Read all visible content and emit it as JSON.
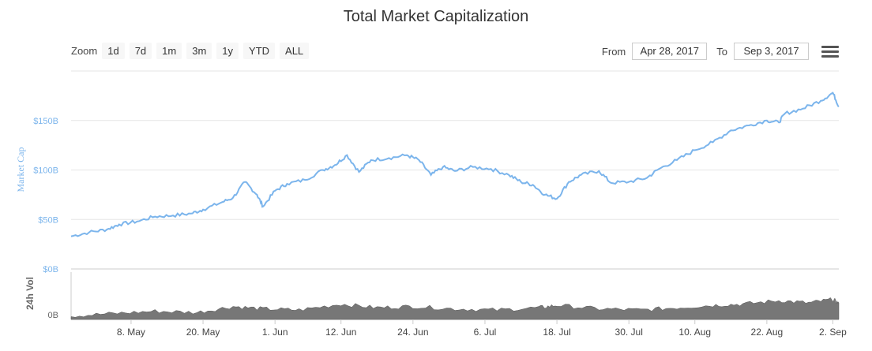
{
  "header": {
    "title": "Total Market Capitalization"
  },
  "zoom": {
    "label": "Zoom",
    "buttons": [
      "1d",
      "7d",
      "1m",
      "3m",
      "1y",
      "YTD",
      "ALL"
    ]
  },
  "range": {
    "from_label": "From",
    "from_value": "Apr 28, 2017",
    "to_label": "To",
    "to_value": "Sep 3, 2017"
  },
  "menu": {
    "icon": "hamburger-menu-icon"
  },
  "chart_data": {
    "type": "line",
    "title": "Total Market Capitalization",
    "x_range": [
      "2017-04-28",
      "2017-09-03"
    ],
    "x_ticks": [
      "8. May",
      "20. May",
      "1. Jun",
      "12. Jun",
      "24. Jun",
      "6. Jul",
      "18. Jul",
      "30. Jul",
      "10. Aug",
      "22. Aug",
      "2. Sep"
    ],
    "x_tick_dates": [
      "2017-05-08",
      "2017-05-20",
      "2017-06-01",
      "2017-06-12",
      "2017-06-24",
      "2017-07-06",
      "2017-07-18",
      "2017-07-30",
      "2017-08-10",
      "2017-08-22",
      "2017-09-02"
    ],
    "ylabel": "Market Cap",
    "ylim": [
      0,
      200
    ],
    "y_unit": "B",
    "y_ticks": [
      "$0B",
      "$50B",
      "$100B",
      "$150B"
    ],
    "y_tick_values": [
      0,
      50,
      100,
      150
    ],
    "grid": true,
    "colors": {
      "line": "#7cb5ec",
      "volume": "#777777",
      "axis_label": "#7cb5ec"
    },
    "series": [
      {
        "values": [
          [
            "2017-04-28",
            33
          ],
          [
            "2017-05-01",
            37
          ],
          [
            "2017-05-04",
            40
          ],
          [
            "2017-05-06",
            45
          ],
          [
            "2017-05-09",
            48
          ],
          [
            "2017-05-12",
            53
          ],
          [
            "2017-05-15",
            54
          ],
          [
            "2017-05-18",
            56
          ],
          [
            "2017-05-20",
            60
          ],
          [
            "2017-05-23",
            67
          ],
          [
            "2017-05-25",
            72
          ],
          [
            "2017-05-27",
            88
          ],
          [
            "2017-05-29",
            75
          ],
          [
            "2017-05-30",
            63
          ],
          [
            "2017-06-01",
            79
          ],
          [
            "2017-06-03",
            86
          ],
          [
            "2017-06-06",
            90
          ],
          [
            "2017-06-09",
            100
          ],
          [
            "2017-06-11",
            105
          ],
          [
            "2017-06-13",
            115
          ],
          [
            "2017-06-15",
            98
          ],
          [
            "2017-06-17",
            110
          ],
          [
            "2017-06-20",
            112
          ],
          [
            "2017-06-23",
            115
          ],
          [
            "2017-06-25",
            110
          ],
          [
            "2017-06-27",
            95
          ],
          [
            "2017-06-29",
            103
          ],
          [
            "2017-07-01",
            99
          ],
          [
            "2017-07-04",
            103
          ],
          [
            "2017-07-07",
            101
          ],
          [
            "2017-07-10",
            95
          ],
          [
            "2017-07-12",
            88
          ],
          [
            "2017-07-14",
            85
          ],
          [
            "2017-07-16",
            75
          ],
          [
            "2017-07-18",
            71
          ],
          [
            "2017-07-20",
            88
          ],
          [
            "2017-07-22",
            95
          ],
          [
            "2017-07-25",
            99
          ],
          [
            "2017-07-27",
            87
          ],
          [
            "2017-07-30",
            88
          ],
          [
            "2017-08-02",
            92
          ],
          [
            "2017-08-04",
            101
          ],
          [
            "2017-08-07",
            110
          ],
          [
            "2017-08-10",
            120
          ],
          [
            "2017-08-13",
            128
          ],
          [
            "2017-08-16",
            140
          ],
          [
            "2017-08-19",
            145
          ],
          [
            "2017-08-22",
            150
          ],
          [
            "2017-08-24",
            148
          ],
          [
            "2017-08-25",
            157
          ],
          [
            "2017-08-28",
            162
          ],
          [
            "2017-08-31",
            170
          ],
          [
            "2017-09-02",
            178
          ],
          [
            "2017-09-03",
            164
          ]
        ]
      }
    ],
    "volume": {
      "label": "24h Vol",
      "y_tick": "0B",
      "values": [
        [
          "2017-04-28",
          0.15
        ],
        [
          "2017-05-05",
          0.25
        ],
        [
          "2017-05-12",
          0.35
        ],
        [
          "2017-05-19",
          0.3
        ],
        [
          "2017-05-25",
          0.55
        ],
        [
          "2017-05-30",
          0.45
        ],
        [
          "2017-06-05",
          0.4
        ],
        [
          "2017-06-12",
          0.65
        ],
        [
          "2017-06-18",
          0.5
        ],
        [
          "2017-06-24",
          0.55
        ],
        [
          "2017-07-01",
          0.45
        ],
        [
          "2017-07-08",
          0.4
        ],
        [
          "2017-07-15",
          0.5
        ],
        [
          "2017-07-18",
          0.6
        ],
        [
          "2017-07-25",
          0.45
        ],
        [
          "2017-08-01",
          0.4
        ],
        [
          "2017-08-07",
          0.5
        ],
        [
          "2017-08-13",
          0.6
        ],
        [
          "2017-08-18",
          0.65
        ],
        [
          "2017-08-24",
          0.8
        ],
        [
          "2017-08-29",
          0.7
        ],
        [
          "2017-09-02",
          0.85
        ],
        [
          "2017-09-03",
          0.7
        ]
      ]
    }
  }
}
